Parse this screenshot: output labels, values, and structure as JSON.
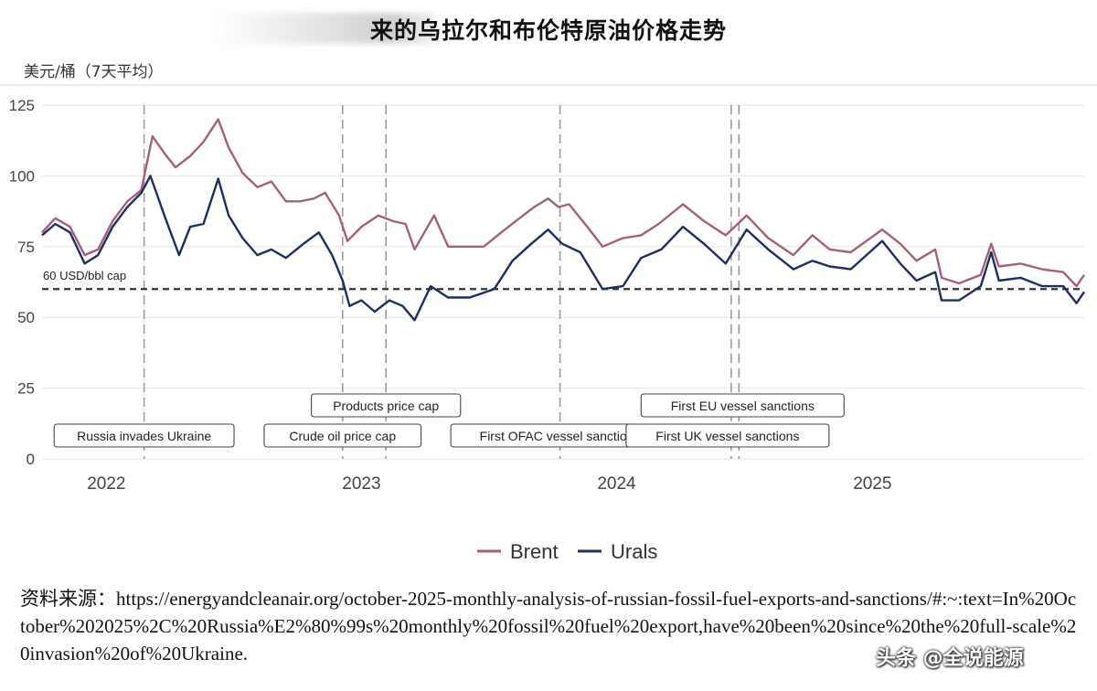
{
  "chart_data": {
    "type": "line",
    "title": "来的乌拉尔和布伦特原油价格走势",
    "ylabel": "美元/桶（7天平均）",
    "xlabel": "",
    "ylim": [
      0,
      125
    ],
    "yticks": [
      0,
      25,
      50,
      75,
      100,
      125
    ],
    "xlim": [
      "2021-10-01",
      "2025-10-31"
    ],
    "xticks": [
      {
        "date": "2022-01-01",
        "label": "2022"
      },
      {
        "date": "2023-01-01",
        "label": "2023"
      },
      {
        "date": "2024-01-01",
        "label": "2024"
      },
      {
        "date": "2025-01-01",
        "label": "2025"
      }
    ],
    "grid": "horizontal",
    "legend": "bottom-center",
    "reference_line": {
      "value": 60,
      "label": "60 USD/bbl cap",
      "style": "dashed"
    },
    "events": [
      {
        "date": "2022-02-24",
        "label": "Russia invades Ukraine",
        "row": "lower"
      },
      {
        "date": "2022-12-05",
        "label": "Crude oil price cap",
        "row": "lower"
      },
      {
        "date": "2023-02-05",
        "label": "Products price cap",
        "row": "upper"
      },
      {
        "date": "2023-10-12",
        "label": "First OFAC vessel sanctions",
        "row": "lower"
      },
      {
        "date": "2024-06-13",
        "label": "First UK vessel sanctions",
        "row": "lower"
      },
      {
        "date": "2024-06-24",
        "label": "First EU vessel sanctions",
        "row": "upper"
      }
    ],
    "series": [
      {
        "name": "Brent",
        "color": "#a0617f",
        "points": [
          [
            "2021-10-01",
            80
          ],
          [
            "2021-10-20",
            85
          ],
          [
            "2021-11-10",
            82
          ],
          [
            "2021-12-01",
            72
          ],
          [
            "2021-12-20",
            74
          ],
          [
            "2022-01-10",
            84
          ],
          [
            "2022-01-31",
            91
          ],
          [
            "2022-02-20",
            95
          ],
          [
            "2022-03-08",
            114
          ],
          [
            "2022-03-25",
            108
          ],
          [
            "2022-04-10",
            103
          ],
          [
            "2022-05-01",
            107
          ],
          [
            "2022-05-20",
            112
          ],
          [
            "2022-06-10",
            120
          ],
          [
            "2022-06-25",
            110
          ],
          [
            "2022-07-15",
            101
          ],
          [
            "2022-08-05",
            96
          ],
          [
            "2022-08-25",
            98
          ],
          [
            "2022-09-15",
            91
          ],
          [
            "2022-10-05",
            91
          ],
          [
            "2022-10-25",
            92
          ],
          [
            "2022-11-10",
            94
          ],
          [
            "2022-11-30",
            86
          ],
          [
            "2022-12-12",
            77
          ],
          [
            "2023-01-01",
            82
          ],
          [
            "2023-01-25",
            86
          ],
          [
            "2023-02-15",
            84
          ],
          [
            "2023-03-05",
            83
          ],
          [
            "2023-03-18",
            74
          ],
          [
            "2023-04-15",
            86
          ],
          [
            "2023-05-05",
            75
          ],
          [
            "2023-05-30",
            75
          ],
          [
            "2023-06-25",
            75
          ],
          [
            "2023-07-20",
            80
          ],
          [
            "2023-08-15",
            85
          ],
          [
            "2023-09-05",
            89
          ],
          [
            "2023-09-25",
            92
          ],
          [
            "2023-10-10",
            89
          ],
          [
            "2023-10-25",
            90
          ],
          [
            "2023-11-20",
            82
          ],
          [
            "2023-12-12",
            75
          ],
          [
            "2024-01-10",
            78
          ],
          [
            "2024-02-05",
            79
          ],
          [
            "2024-03-01",
            83
          ],
          [
            "2024-04-05",
            90
          ],
          [
            "2024-05-05",
            84
          ],
          [
            "2024-06-05",
            79
          ],
          [
            "2024-07-05",
            86
          ],
          [
            "2024-08-05",
            78
          ],
          [
            "2024-09-10",
            72
          ],
          [
            "2024-10-07",
            79
          ],
          [
            "2024-11-01",
            74
          ],
          [
            "2024-12-01",
            73
          ],
          [
            "2025-01-15",
            81
          ],
          [
            "2025-02-10",
            76
          ],
          [
            "2025-03-05",
            70
          ],
          [
            "2025-04-01",
            74
          ],
          [
            "2025-04-10",
            64
          ],
          [
            "2025-05-05",
            62
          ],
          [
            "2025-06-05",
            65
          ],
          [
            "2025-06-20",
            76
          ],
          [
            "2025-07-01",
            68
          ],
          [
            "2025-08-01",
            69
          ],
          [
            "2025-09-01",
            67
          ],
          [
            "2025-10-01",
            66
          ],
          [
            "2025-10-20",
            61
          ],
          [
            "2025-10-31",
            65
          ]
        ]
      },
      {
        "name": "Urals",
        "color": "#1f2f5c",
        "points": [
          [
            "2021-10-01",
            79
          ],
          [
            "2021-10-20",
            83
          ],
          [
            "2021-11-10",
            80
          ],
          [
            "2021-12-01",
            69
          ],
          [
            "2021-12-20",
            72
          ],
          [
            "2022-01-10",
            82
          ],
          [
            "2022-01-31",
            89
          ],
          [
            "2022-02-20",
            94
          ],
          [
            "2022-03-05",
            100
          ],
          [
            "2022-03-25",
            86
          ],
          [
            "2022-04-15",
            72
          ],
          [
            "2022-05-01",
            82
          ],
          [
            "2022-05-20",
            83
          ],
          [
            "2022-06-10",
            99
          ],
          [
            "2022-06-25",
            86
          ],
          [
            "2022-07-15",
            78
          ],
          [
            "2022-08-05",
            72
          ],
          [
            "2022-08-25",
            74
          ],
          [
            "2022-09-15",
            71
          ],
          [
            "2022-10-10",
            76
          ],
          [
            "2022-11-01",
            80
          ],
          [
            "2022-11-20",
            72
          ],
          [
            "2022-12-05",
            63
          ],
          [
            "2022-12-15",
            54
          ],
          [
            "2023-01-01",
            56
          ],
          [
            "2023-01-20",
            52
          ],
          [
            "2023-02-10",
            56
          ],
          [
            "2023-03-01",
            54
          ],
          [
            "2023-03-18",
            49
          ],
          [
            "2023-04-10",
            61
          ],
          [
            "2023-05-05",
            57
          ],
          [
            "2023-06-05",
            57
          ],
          [
            "2023-07-10",
            60
          ],
          [
            "2023-08-05",
            70
          ],
          [
            "2023-09-01",
            76
          ],
          [
            "2023-09-25",
            81
          ],
          [
            "2023-10-15",
            76
          ],
          [
            "2023-11-10",
            73
          ],
          [
            "2023-12-12",
            60
          ],
          [
            "2024-01-10",
            61
          ],
          [
            "2024-02-05",
            71
          ],
          [
            "2024-03-05",
            74
          ],
          [
            "2024-04-05",
            82
          ],
          [
            "2024-05-05",
            76
          ],
          [
            "2024-06-05",
            69
          ],
          [
            "2024-07-05",
            81
          ],
          [
            "2024-08-05",
            74
          ],
          [
            "2024-09-10",
            67
          ],
          [
            "2024-10-07",
            70
          ],
          [
            "2024-11-01",
            68
          ],
          [
            "2024-12-01",
            67
          ],
          [
            "2025-01-15",
            77
          ],
          [
            "2025-02-10",
            69
          ],
          [
            "2025-03-05",
            63
          ],
          [
            "2025-04-01",
            66
          ],
          [
            "2025-04-10",
            56
          ],
          [
            "2025-05-05",
            56
          ],
          [
            "2025-06-05",
            61
          ],
          [
            "2025-06-20",
            73
          ],
          [
            "2025-07-01",
            63
          ],
          [
            "2025-08-01",
            64
          ],
          [
            "2025-09-01",
            61
          ],
          [
            "2025-10-01",
            61
          ],
          [
            "2025-10-20",
            55
          ],
          [
            "2025-10-31",
            59
          ]
        ]
      }
    ]
  },
  "source": "资料来源：https://energyandcleanair.org/october-2025-monthly-analysis-of-russian-fossil-fuel-exports-and-sanctions/#:~:text=In%20October%202025%2C%20Russia%E2%80%99s%20monthly%20fossil%20fuel%20export,have%20been%20since%20the%20full-scale%20invasion%20of%20Ukraine.",
  "watermark": "头条 @全说能源"
}
